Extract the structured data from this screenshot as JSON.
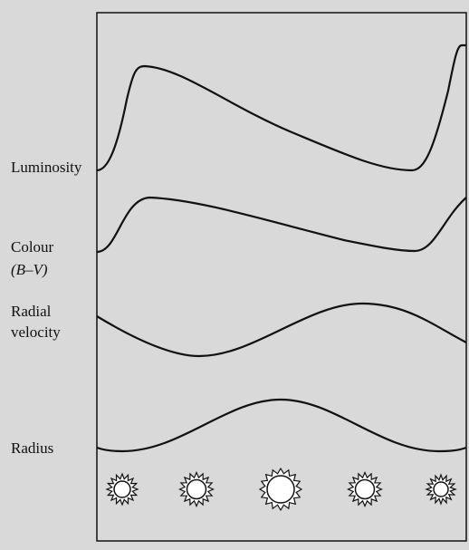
{
  "labels": [
    {
      "lines": [
        "Luminosity"
      ]
    },
    {
      "lines": [
        "Colour",
        "(B–V)"
      ]
    },
    {
      "lines": [
        "Radial",
        "velocity"
      ]
    },
    {
      "lines": [
        "Radius"
      ]
    }
  ]
}
